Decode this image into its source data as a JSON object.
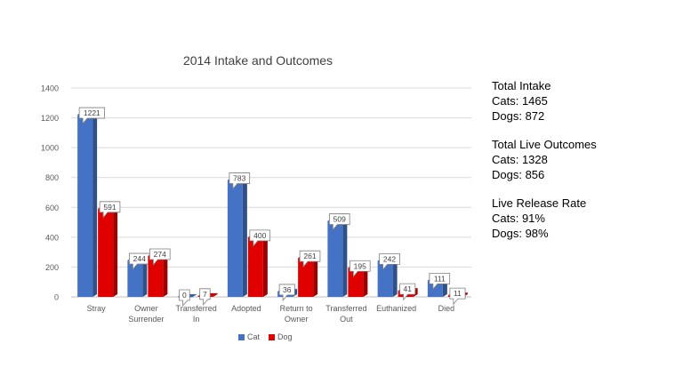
{
  "chart_data": {
    "type": "bar",
    "title": "2014 Intake and Outcomes",
    "categories": [
      "Stray",
      "Owner Surrender",
      "Transferred In",
      "Adopted",
      "Return to Owner",
      "Transferred Out",
      "Euthanized",
      "Died"
    ],
    "category_lines": [
      [
        "Stray"
      ],
      [
        "Owner",
        "Surrender"
      ],
      [
        "Transferred",
        "In"
      ],
      [
        "Adopted"
      ],
      [
        "Return to",
        "Owner"
      ],
      [
        "Transferred",
        "Out"
      ],
      [
        "Euthanized"
      ],
      [
        "Died"
      ]
    ],
    "series": [
      {
        "name": "Cat",
        "color": "#4472C4",
        "values": [
          1221,
          244,
          0,
          783,
          36,
          509,
          242,
          111
        ]
      },
      {
        "name": "Dog",
        "color": "#E00000",
        "values": [
          591,
          274,
          7,
          400,
          261,
          195,
          41,
          11
        ]
      }
    ],
    "ylim": [
      0,
      1400
    ],
    "yticks": [
      0,
      200,
      400,
      600,
      800,
      1000,
      1200,
      1400
    ],
    "grid": true,
    "legend_position": "bottom",
    "xlabel": "",
    "ylabel": ""
  },
  "stats": {
    "intake_title": "Total Intake",
    "intake_cats": "Cats: 1465",
    "intake_dogs": "Dogs: 872",
    "live_title": "Total Live Outcomes",
    "live_cats": "Cats: 1328",
    "live_dogs": "Dogs: 856",
    "rate_title": "Live Release Rate",
    "rate_cats": "Cats: 91%",
    "rate_dogs": "Dogs: 98%"
  }
}
